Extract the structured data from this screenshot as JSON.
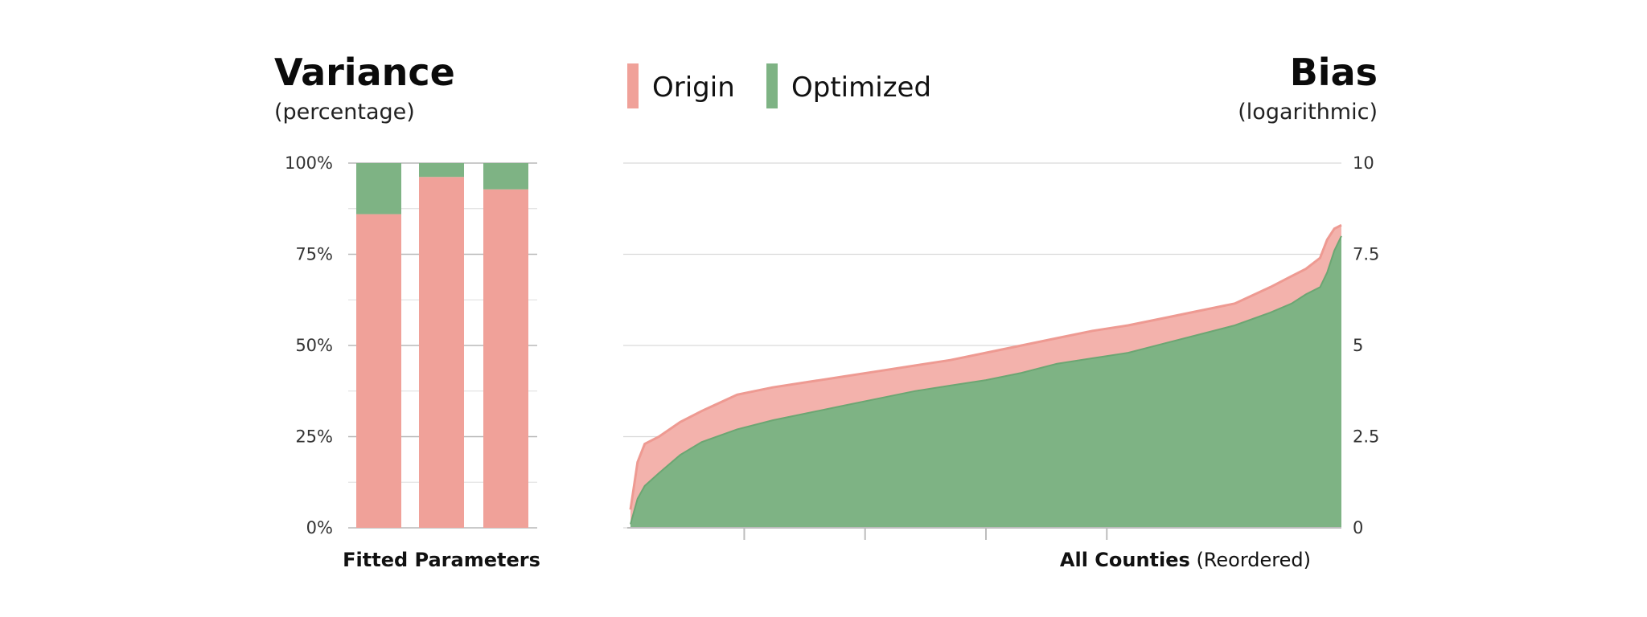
{
  "colors": {
    "origin": "#F0A199",
    "optimized": "#7EB384",
    "grid": "#d9d9d9",
    "axis": "#bdbdbd"
  },
  "chart_data": [
    {
      "type": "bar",
      "stacked": true,
      "title": "Variance",
      "subtitle": "(percentage)",
      "xlabel": "Fitted Parameters",
      "ylabel": "",
      "ylim": [
        0,
        100
      ],
      "yticks": [
        "0%",
        "25%",
        "50%",
        "75%",
        "100%"
      ],
      "categories": [
        "",
        "",
        ""
      ],
      "series": [
        {
          "name": "Origin",
          "values": [
            86,
            96.2,
            92.8
          ]
        },
        {
          "name": "Optimized",
          "values": [
            14,
            3.8,
            7.2
          ]
        }
      ],
      "grid": true
    },
    {
      "type": "area",
      "title": "Bias",
      "subtitle": "(logarithmic)",
      "xlabel_bold": "All Counties",
      "xlabel_rest": " (Reordered)",
      "ylim": [
        0,
        10
      ],
      "yticks": [
        "0",
        "2.5",
        "5",
        "7.5",
        "10"
      ],
      "y_axis_side": "right",
      "legend": [
        "Origin",
        "Optimized"
      ],
      "legend_position": "top-left",
      "grid": true,
      "x": [
        0,
        0.01,
        0.02,
        0.04,
        0.07,
        0.1,
        0.15,
        0.2,
        0.25,
        0.3,
        0.35,
        0.4,
        0.45,
        0.5,
        0.55,
        0.6,
        0.65,
        0.7,
        0.75,
        0.8,
        0.85,
        0.9,
        0.93,
        0.95,
        0.97,
        0.98,
        0.99,
        1.0
      ],
      "series": [
        {
          "name": "Origin",
          "values": [
            0.5,
            1.8,
            2.3,
            2.5,
            2.9,
            3.2,
            3.65,
            3.85,
            4.0,
            4.15,
            4.3,
            4.45,
            4.6,
            4.8,
            5.0,
            5.2,
            5.4,
            5.55,
            5.75,
            5.95,
            6.15,
            6.6,
            6.9,
            7.1,
            7.4,
            7.9,
            8.2,
            8.3
          ]
        },
        {
          "name": "Optimized",
          "values": [
            0.1,
            0.8,
            1.15,
            1.5,
            2.0,
            2.35,
            2.7,
            2.95,
            3.15,
            3.35,
            3.55,
            3.75,
            3.9,
            4.05,
            4.25,
            4.5,
            4.65,
            4.8,
            5.05,
            5.3,
            5.55,
            5.9,
            6.15,
            6.4,
            6.6,
            7.0,
            7.6,
            8.0
          ]
        }
      ]
    }
  ]
}
